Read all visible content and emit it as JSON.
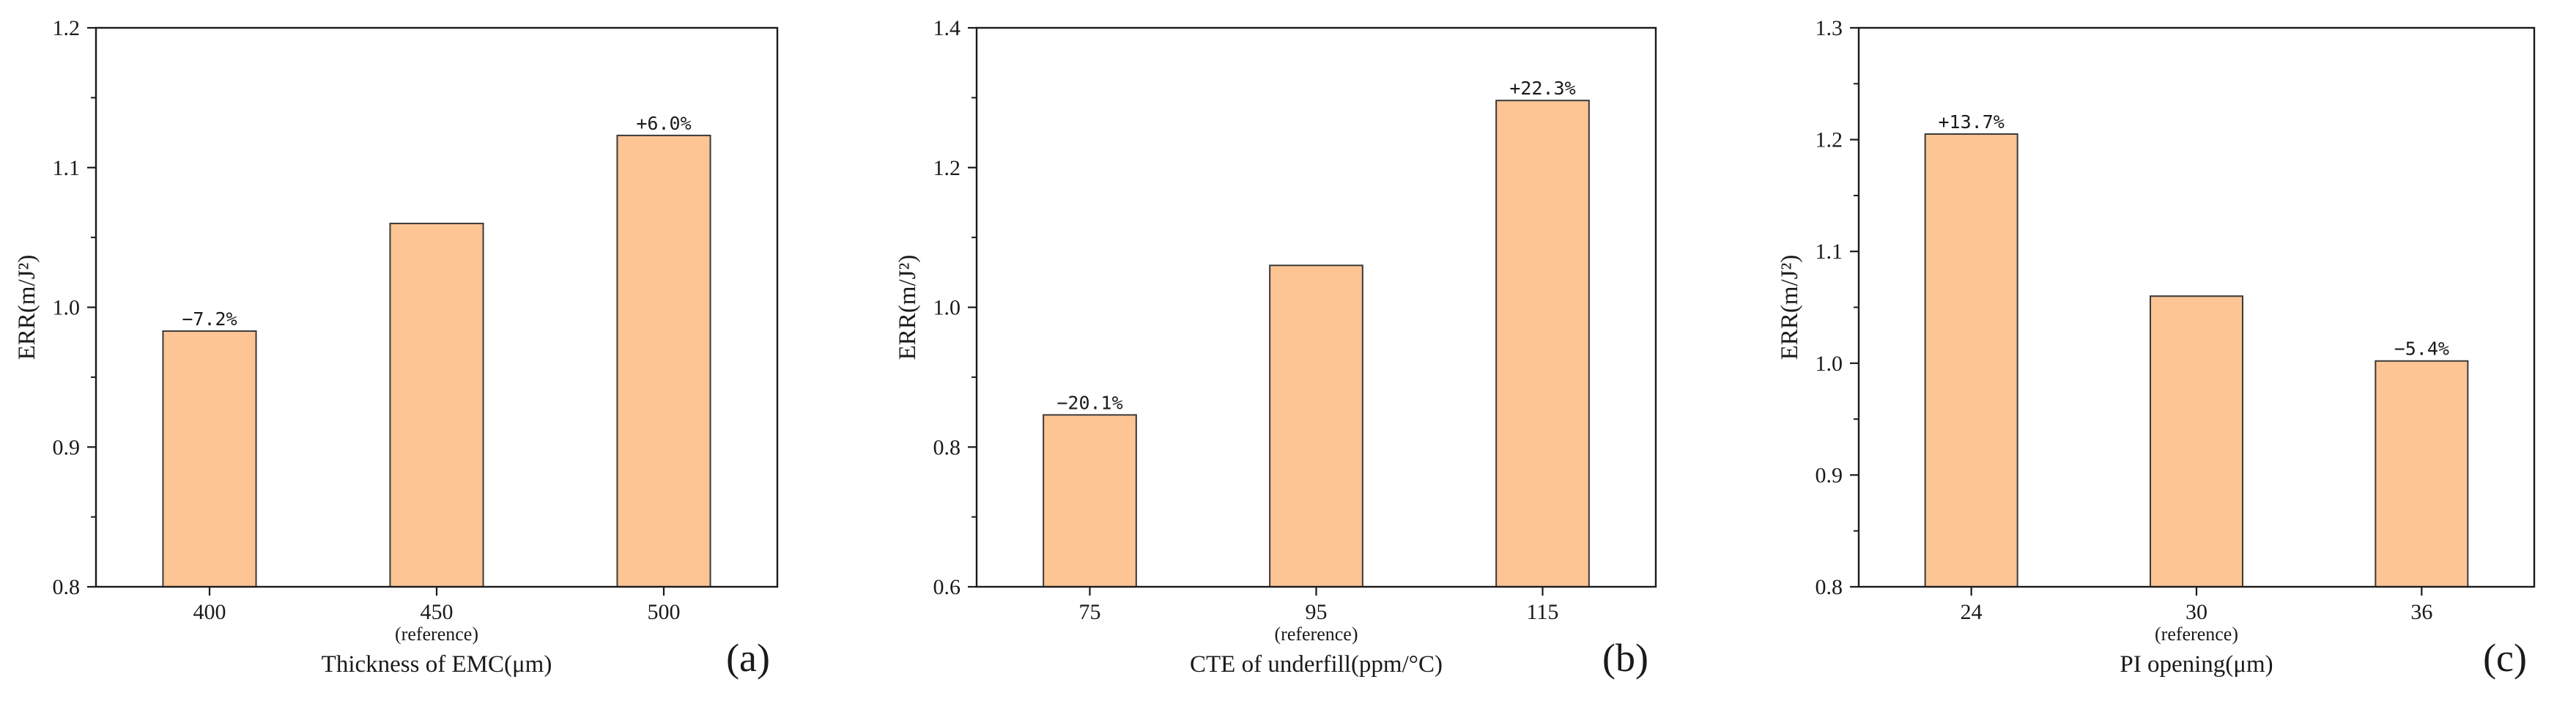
{
  "figure": {
    "colors": {
      "bar_fill": "#fdc494",
      "bar_stroke": "#3a3a3a",
      "axis": "#1a1a1a"
    }
  },
  "chart_data": [
    {
      "type": "bar",
      "panel": "(a)",
      "categories": [
        "400",
        "450",
        "500"
      ],
      "category_notes": [
        "",
        "(reference)",
        ""
      ],
      "values": [
        0.983,
        1.06,
        1.123
      ],
      "data_labels": [
        "−7.2%",
        "",
        "+6.0%"
      ],
      "xlabel": "Thickness of EMC(μm)",
      "ylabel": "ERR(m/J²)",
      "ylim": [
        0.8,
        1.2
      ],
      "yticks": [
        "0.8",
        "0.9",
        "1.0",
        "1.1",
        "1.2"
      ]
    },
    {
      "type": "bar",
      "panel": "(b)",
      "categories": [
        "75",
        "95",
        "115"
      ],
      "category_notes": [
        "",
        "(reference)",
        ""
      ],
      "values": [
        0.846,
        1.06,
        1.296
      ],
      "data_labels": [
        "−20.1%",
        "",
        "+22.3%"
      ],
      "xlabel": "CTE of underfill(ppm/°C)",
      "ylabel": "ERR(m/J²)",
      "ylim": [
        0.6,
        1.4
      ],
      "yticks": [
        "0.6",
        "0.8",
        "1.0",
        "1.2",
        "1.4"
      ]
    },
    {
      "type": "bar",
      "panel": "(c)",
      "categories": [
        "24",
        "30",
        "36"
      ],
      "category_notes": [
        "",
        "(reference)",
        ""
      ],
      "values": [
        1.205,
        1.06,
        1.002
      ],
      "data_labels": [
        "+13.7%",
        "",
        "−5.4%"
      ],
      "xlabel": "PI opening(μm)",
      "ylabel": "ERR(m/J²)",
      "ylim": [
        0.8,
        1.3
      ],
      "yticks": [
        "0.8",
        "0.9",
        "1.0",
        "1.1",
        "1.2",
        "1.3"
      ]
    }
  ]
}
